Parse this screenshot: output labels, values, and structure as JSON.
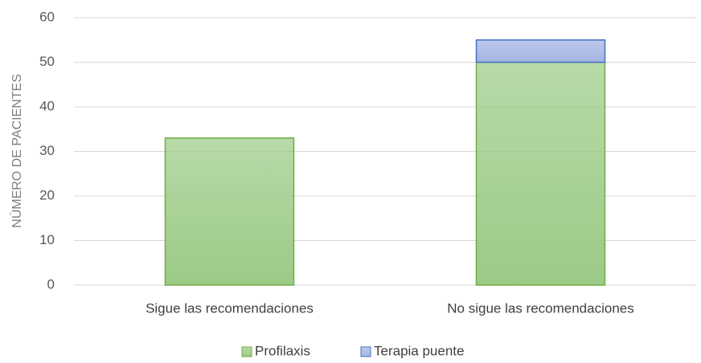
{
  "chart_data": {
    "type": "stacked_bar",
    "y_label": "NÚMERO DE PACIENTES",
    "categories": [
      "Sigue las recomendaciones",
      "No sigue las recomendaciones"
    ],
    "series": [
      {
        "name": "Profilaxis",
        "color": "#9ccb86",
        "edge": "#70ad47",
        "values": [
          33,
          50
        ]
      },
      {
        "name": "Terapia puente",
        "color": "#a4b3e2",
        "edge": "#4472c4",
        "values": [
          0,
          5
        ]
      }
    ],
    "ylim": [
      0,
      60
    ],
    "yticks": [
      0,
      10,
      20,
      30,
      40,
      50,
      60
    ],
    "grid": true,
    "legend": "bottom"
  }
}
